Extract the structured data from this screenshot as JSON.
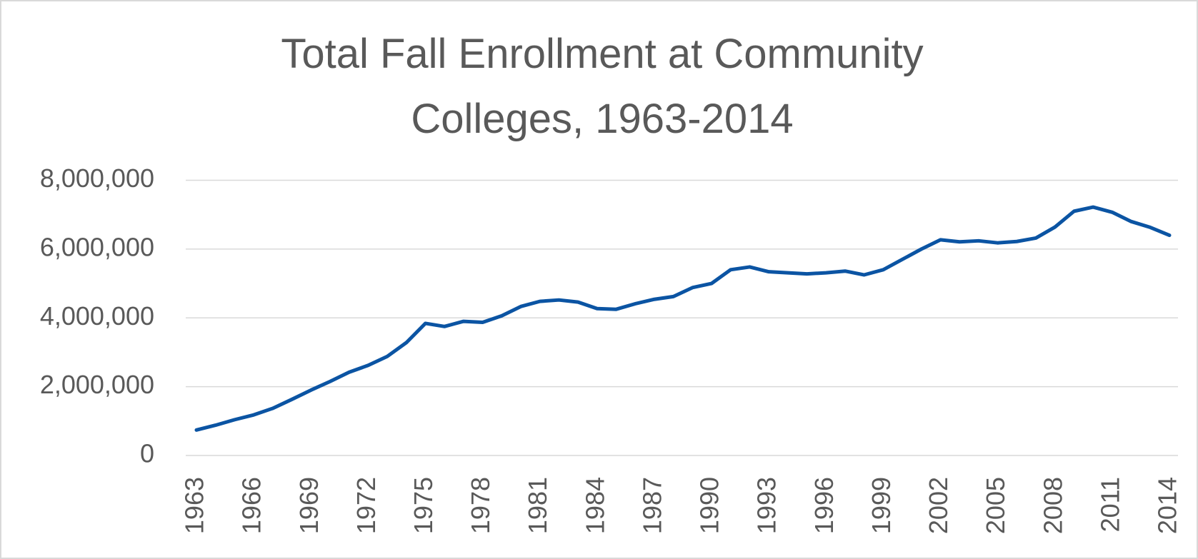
{
  "chart_data": {
    "type": "line",
    "title": [
      "Total Fall Enrollment at Community",
      "Colleges, 1963-2014"
    ],
    "x": [
      1963,
      1964,
      1965,
      1966,
      1967,
      1968,
      1969,
      1970,
      1971,
      1972,
      1973,
      1974,
      1975,
      1976,
      1977,
      1978,
      1979,
      1980,
      1981,
      1982,
      1983,
      1984,
      1985,
      1986,
      1987,
      1988,
      1989,
      1990,
      1991,
      1992,
      1993,
      1994,
      1995,
      1996,
      1997,
      1998,
      1999,
      2000,
      2001,
      2002,
      2003,
      2004,
      2005,
      2006,
      2007,
      2008,
      2009,
      2010,
      2011,
      2012,
      2013,
      2014
    ],
    "series": [
      {
        "name": "Total Fall Enrollment",
        "color": "#0b54a3",
        "values": [
          740000,
          880000,
          1040000,
          1180000,
          1370000,
          1630000,
          1900000,
          2150000,
          2420000,
          2620000,
          2880000,
          3280000,
          3840000,
          3750000,
          3900000,
          3870000,
          4060000,
          4330000,
          4480000,
          4520000,
          4460000,
          4270000,
          4250000,
          4410000,
          4540000,
          4620000,
          4880000,
          5000000,
          5400000,
          5480000,
          5340000,
          5310000,
          5280000,
          5310000,
          5360000,
          5250000,
          5400000,
          5700000,
          6000000,
          6270000,
          6210000,
          6240000,
          6180000,
          6220000,
          6320000,
          6640000,
          7100000,
          7220000,
          7070000,
          6800000,
          6630000,
          6400000
        ]
      }
    ],
    "xlim": [
      1963,
      2014
    ],
    "xticks": [
      1963,
      1966,
      1969,
      1972,
      1975,
      1978,
      1981,
      1984,
      1987,
      1990,
      1993,
      1996,
      1999,
      2002,
      2005,
      2008,
      2011,
      2014
    ],
    "ylim": [
      0,
      8000000
    ],
    "yticks": [
      0,
      {
        "value": 2000000,
        "label": "2,000,000"
      },
      {
        "value": 4000000,
        "label": "4,000,000"
      },
      {
        "value": 6000000,
        "label": "6,000,000"
      },
      {
        "value": 8000000,
        "label": "8,000,000"
      }
    ],
    "grid": true
  }
}
